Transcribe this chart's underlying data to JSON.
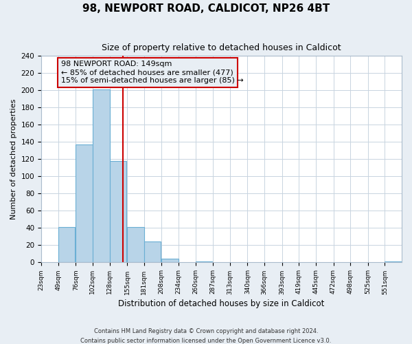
{
  "title": "98, NEWPORT ROAD, CALDICOT, NP26 4BT",
  "subtitle": "Size of property relative to detached houses in Caldicot",
  "xlabel": "Distribution of detached houses by size in Caldicot",
  "ylabel": "Number of detached properties",
  "footer_lines": [
    "Contains HM Land Registry data © Crown copyright and database right 2024.",
    "Contains public sector information licensed under the Open Government Licence v3.0."
  ],
  "bin_edges": [
    23,
    49,
    76,
    102,
    128,
    155,
    181,
    208,
    234,
    260,
    287,
    313,
    340,
    366,
    393,
    419,
    445,
    472,
    498,
    525,
    551
  ],
  "bar_heights": [
    0,
    41,
    137,
    201,
    118,
    41,
    24,
    4,
    0,
    1,
    0,
    0,
    0,
    0,
    0,
    0,
    0,
    0,
    0,
    0,
    1
  ],
  "bar_color": "#b8d4e8",
  "bar_edge_color": "#6aafd4",
  "vline_x": 149,
  "vline_color": "#cc0000",
  "annotation_title": "98 NEWPORT ROAD: 149sqm",
  "annotation_line1": "← 85% of detached houses are smaller (477)",
  "annotation_line2": "15% of semi-detached houses are larger (85) →",
  "annotation_box_edge": "#cc0000",
  "annotation_box_bg": "#e8eef4",
  "ylim": [
    0,
    240
  ],
  "yticks": [
    0,
    20,
    40,
    60,
    80,
    100,
    120,
    140,
    160,
    180,
    200,
    220,
    240
  ],
  "tick_labels": [
    "23sqm",
    "49sqm",
    "76sqm",
    "102sqm",
    "128sqm",
    "155sqm",
    "181sqm",
    "208sqm",
    "234sqm",
    "260sqm",
    "287sqm",
    "313sqm",
    "340sqm",
    "366sqm",
    "393sqm",
    "419sqm",
    "445sqm",
    "472sqm",
    "498sqm",
    "525sqm",
    "551sqm"
  ],
  "background_color": "#e8eef4",
  "plot_bg_color": "#ffffff",
  "grid_color": "#c8d4e0"
}
